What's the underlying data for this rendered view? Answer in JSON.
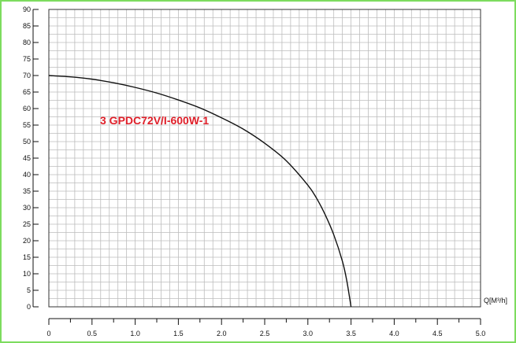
{
  "chart_data": {
    "type": "line",
    "title": "",
    "xlabel": "Q[M³/h]",
    "ylabel": "",
    "xlim": [
      0,
      5.0
    ],
    "ylim": [
      0,
      90
    ],
    "x_ticks": [
      "0",
      "0.5",
      "1.0",
      "1.5",
      "2.0",
      "2.5",
      "3.0",
      "3.5",
      "4.0",
      "4.5",
      "5.0"
    ],
    "y_ticks": [
      "0",
      "5",
      "10",
      "15",
      "20",
      "25",
      "30",
      "35",
      "40",
      "45",
      "50",
      "55",
      "60",
      "65",
      "70",
      "75",
      "80",
      "85",
      "90"
    ],
    "grid": true,
    "series": [
      {
        "name": "3 GPDC72V/I-600W-1",
        "color": "#111111",
        "x": [
          0,
          0.25,
          0.5,
          0.75,
          1.0,
          1.25,
          1.5,
          1.75,
          2.0,
          2.25,
          2.5,
          2.75,
          3.0,
          3.1,
          3.2,
          3.3,
          3.4,
          3.45,
          3.5
        ],
        "y": [
          70,
          69.6,
          68.9,
          67.8,
          66.4,
          64.7,
          62.6,
          60.2,
          57.2,
          53.8,
          49.5,
          44.2,
          36.8,
          32.9,
          27.9,
          21.8,
          13.8,
          8.0,
          0
        ]
      }
    ],
    "label_color": "#e0202a",
    "frame_color": "#7ddc5f"
  }
}
